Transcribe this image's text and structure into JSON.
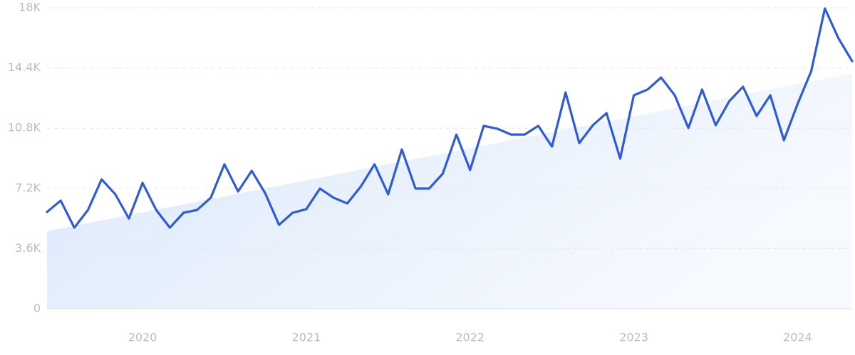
{
  "chart_data": {
    "type": "line",
    "categories": [
      null,
      null,
      null,
      null,
      null,
      null,
      null,
      "2020",
      null,
      null,
      null,
      null,
      null,
      null,
      null,
      null,
      null,
      null,
      null,
      "2021",
      null,
      null,
      null,
      null,
      null,
      null,
      null,
      null,
      null,
      null,
      null,
      "2022",
      null,
      null,
      null,
      null,
      null,
      null,
      null,
      null,
      null,
      null,
      null,
      "2023",
      null,
      null,
      null,
      null,
      null,
      null,
      null,
      null,
      null,
      null,
      null,
      "2024",
      null,
      null,
      null,
      null
    ],
    "series": [
      {
        "color": "#2f5bd9",
        "values": [
          5790,
          6470,
          4850,
          5910,
          7740,
          6850,
          5400,
          7530,
          5910,
          4850,
          5740,
          5910,
          6640,
          8640,
          7020,
          8250,
          6890,
          5020,
          5740,
          5960,
          7190,
          6640,
          6300,
          7320,
          8640,
          6850,
          9530,
          7190,
          7190,
          8080,
          10420,
          8300,
          10940,
          10770,
          10420,
          10420,
          10940,
          9700,
          12940,
          9910,
          10980,
          11700,
          8980,
          12770,
          13110,
          13830,
          12770,
          10810,
          13110,
          10980,
          12420,
          13280,
          11530,
          12770,
          10080,
          12250,
          14210,
          17960,
          16170,
          14810
        ]
      }
    ],
    "trend_values": [
      4640,
      14080
    ],
    "ylim": [
      0,
      18000
    ],
    "yticks": [
      0,
      {
        "value": 3600,
        "label": "3.6K"
      },
      {
        "value": 7200,
        "label": "7.2K"
      },
      {
        "value": 10800,
        "label": "10.8K"
      },
      {
        "value": 14400,
        "label": "14.4K"
      },
      {
        "value": 18000,
        "label": "18K"
      }
    ],
    "grid": true
  }
}
